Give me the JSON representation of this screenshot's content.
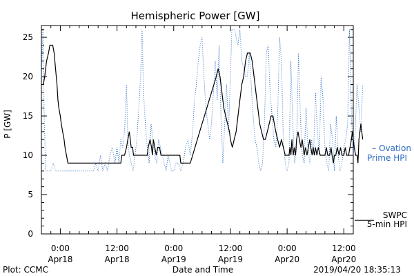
{
  "chart_data": {
    "type": "line",
    "title": "Hemispheric Power [GW]",
    "xlabel": "Date and Time",
    "ylabel": "P [GW]",
    "ylim": [
      0,
      26.5
    ],
    "xlim": [
      -4,
      62
    ],
    "x_unit": "hours since 2019-04-18 00:00",
    "y_ticks": [
      0,
      5,
      10,
      15,
      20,
      25
    ],
    "x_tick_labels": [
      {
        "x": 0,
        "time": "0:00",
        "date": "Apr18"
      },
      {
        "x": 12,
        "time": "12:00",
        "date": "Apr18"
      },
      {
        "x": 24,
        "time": "0:00",
        "date": "Apr19"
      },
      {
        "x": 36,
        "time": "12:00",
        "date": "Apr19"
      },
      {
        "x": 48,
        "time": "0:00",
        "date": "Apr20"
      },
      {
        "x": 60,
        "time": "12:00",
        "date": "Apr20"
      }
    ],
    "grid": false,
    "series": [
      {
        "name": "SWPC 5-min HPI",
        "style": "solid",
        "color": "#000000",
        "legend_lines": [
          "SWPC",
          "5-min HPI"
        ],
        "legend_y": 2,
        "points": [
          [
            -4,
            19
          ],
          [
            -3.6,
            19
          ],
          [
            -3.3,
            20
          ],
          [
            -2.9,
            22
          ],
          [
            -2.5,
            23
          ],
          [
            -2.2,
            24
          ],
          [
            -1.6,
            24
          ],
          [
            -1.3,
            23
          ],
          [
            -1,
            21
          ],
          [
            -0.7,
            19
          ],
          [
            -0.5,
            17
          ],
          [
            -0.3,
            16
          ],
          [
            0,
            15
          ],
          [
            0.2,
            14
          ],
          [
            0.5,
            13
          ],
          [
            0.8,
            12
          ],
          [
            1,
            11
          ],
          [
            1.3,
            10
          ],
          [
            1.6,
            9
          ],
          [
            6,
            9
          ],
          [
            8,
            9
          ],
          [
            10,
            9
          ],
          [
            12,
            9
          ],
          [
            12.8,
            9
          ],
          [
            13,
            10
          ],
          [
            13.6,
            10
          ],
          [
            14,
            11
          ],
          [
            14.3,
            12
          ],
          [
            14.6,
            13
          ],
          [
            14.8,
            12
          ],
          [
            15,
            11
          ],
          [
            15.3,
            11
          ],
          [
            15.5,
            10
          ],
          [
            16,
            10
          ],
          [
            17,
            10
          ],
          [
            18.4,
            10
          ],
          [
            18.6,
            11
          ],
          [
            19,
            12
          ],
          [
            19.3,
            11
          ],
          [
            19.5,
            10
          ],
          [
            19.7,
            12
          ],
          [
            20,
            11
          ],
          [
            20.3,
            10
          ],
          [
            20.6,
            11
          ],
          [
            21,
            11
          ],
          [
            21.3,
            10
          ],
          [
            21.6,
            10
          ],
          [
            22,
            10
          ],
          [
            22.5,
            10
          ],
          [
            23.3,
            10
          ],
          [
            24,
            10
          ],
          [
            25.3,
            10
          ],
          [
            25.5,
            9
          ],
          [
            26,
            9
          ],
          [
            27.5,
            9
          ],
          [
            28,
            10
          ],
          [
            28.5,
            11
          ],
          [
            29,
            12
          ],
          [
            29.5,
            13
          ],
          [
            30,
            14
          ],
          [
            30.5,
            15
          ],
          [
            31,
            16
          ],
          [
            31.5,
            17
          ],
          [
            32,
            18
          ],
          [
            32.5,
            19
          ],
          [
            33,
            20
          ],
          [
            33.4,
            21
          ],
          [
            33.8,
            20
          ],
          [
            34.2,
            18
          ],
          [
            34.6,
            16
          ],
          [
            35,
            15
          ],
          [
            35.4,
            14
          ],
          [
            35.8,
            13
          ],
          [
            36,
            12
          ],
          [
            36.4,
            11
          ],
          [
            36.8,
            12
          ],
          [
            37.2,
            13
          ],
          [
            37.6,
            15
          ],
          [
            38,
            17
          ],
          [
            38.4,
            19
          ],
          [
            38.8,
            20
          ],
          [
            39.2,
            22
          ],
          [
            39.6,
            23
          ],
          [
            40.2,
            23
          ],
          [
            40.6,
            22
          ],
          [
            41,
            20
          ],
          [
            41.4,
            18
          ],
          [
            41.8,
            16
          ],
          [
            42.2,
            14
          ],
          [
            42.6,
            13
          ],
          [
            43,
            12
          ],
          [
            43.4,
            12
          ],
          [
            43.8,
            13
          ],
          [
            44.2,
            14
          ],
          [
            44.6,
            15
          ],
          [
            45,
            15
          ],
          [
            45.3,
            14
          ],
          [
            45.6,
            13
          ],
          [
            46,
            12
          ],
          [
            46.4,
            11
          ],
          [
            46.8,
            12
          ],
          [
            47.2,
            11
          ],
          [
            47.6,
            10
          ],
          [
            48,
            10
          ],
          [
            48.4,
            10
          ],
          [
            48.6,
            11
          ],
          [
            48.8,
            10
          ],
          [
            49,
            12
          ],
          [
            49.3,
            10
          ],
          [
            49.5,
            11
          ],
          [
            49.8,
            10
          ],
          [
            50,
            12
          ],
          [
            50.3,
            13
          ],
          [
            50.6,
            12
          ],
          [
            50.9,
            11
          ],
          [
            51.2,
            12
          ],
          [
            51.4,
            11
          ],
          [
            51.6,
            10
          ],
          [
            51.9,
            11
          ],
          [
            52.2,
            10
          ],
          [
            52.5,
            11
          ],
          [
            52.8,
            12
          ],
          [
            53,
            11
          ],
          [
            53.3,
            10
          ],
          [
            53.5,
            11
          ],
          [
            53.8,
            10
          ],
          [
            54,
            11
          ],
          [
            54.3,
            10
          ],
          [
            54.6,
            11
          ],
          [
            55,
            10
          ],
          [
            55.5,
            10
          ],
          [
            56,
            10
          ],
          [
            56.3,
            11
          ],
          [
            56.6,
            10
          ],
          [
            57,
            10
          ],
          [
            57.3,
            11
          ],
          [
            57.5,
            10
          ],
          [
            57.8,
            9
          ],
          [
            58,
            10
          ],
          [
            58.3,
            10
          ],
          [
            58.6,
            11
          ],
          [
            59,
            10
          ],
          [
            59.3,
            11
          ],
          [
            59.6,
            10
          ],
          [
            60,
            10
          ],
          [
            60.3,
            11
          ],
          [
            60.6,
            10
          ],
          [
            61,
            10
          ],
          [
            61.3,
            11
          ],
          [
            61.6,
            12
          ],
          [
            61.8,
            13
          ],
          [
            62,
            12
          ],
          [
            62.2,
            11
          ],
          [
            62.5,
            10
          ],
          [
            62.8,
            10
          ],
          [
            63,
            9
          ],
          [
            63.2,
            12
          ],
          [
            63.4,
            13
          ],
          [
            63.6,
            14
          ],
          [
            63.8,
            13
          ],
          [
            64,
            12
          ]
        ]
      },
      {
        "name": "Ovation Prime HPI",
        "style": "dotted",
        "color": "#2a6cc4",
        "legend_lines": [
          "– Ovation",
          "Prime HPI"
        ],
        "legend_y": 10,
        "points": [
          [
            -4,
            20
          ],
          [
            -3.7,
            26
          ],
          [
            -3.4,
            15
          ],
          [
            -3.1,
            8
          ],
          [
            -2.8,
            8
          ],
          [
            -2.5,
            8
          ],
          [
            -2,
            8
          ],
          [
            -1.5,
            9
          ],
          [
            -1,
            8
          ],
          [
            0,
            8
          ],
          [
            2,
            8
          ],
          [
            4,
            8
          ],
          [
            6,
            8
          ],
          [
            7,
            8
          ],
          [
            7.5,
            9
          ],
          [
            8,
            8
          ],
          [
            8.5,
            10
          ],
          [
            9,
            8
          ],
          [
            9.5,
            9
          ],
          [
            10,
            8
          ],
          [
            10.5,
            10
          ],
          [
            11,
            11
          ],
          [
            11.3,
            10
          ],
          [
            11.6,
            9
          ],
          [
            12,
            11
          ],
          [
            12.4,
            9
          ],
          [
            12.8,
            12
          ],
          [
            13.2,
            11
          ],
          [
            13.6,
            13
          ],
          [
            14,
            19
          ],
          [
            14.3,
            12
          ],
          [
            14.6,
            10
          ],
          [
            15,
            9
          ],
          [
            15.4,
            8
          ],
          [
            15.8,
            10
          ],
          [
            16.2,
            12
          ],
          [
            16.6,
            16
          ],
          [
            17,
            20
          ],
          [
            17.3,
            26
          ],
          [
            17.6,
            18
          ],
          [
            18,
            14
          ],
          [
            18.4,
            11
          ],
          [
            18.8,
            9
          ],
          [
            19.2,
            14
          ],
          [
            19.6,
            12
          ],
          [
            20,
            10
          ],
          [
            20.4,
            9
          ],
          [
            20.8,
            12
          ],
          [
            21.2,
            11
          ],
          [
            21.6,
            10
          ],
          [
            22,
            9
          ],
          [
            22.4,
            8
          ],
          [
            22.8,
            10
          ],
          [
            23.2,
            9
          ],
          [
            23.6,
            8
          ],
          [
            24,
            8
          ],
          [
            24.5,
            9
          ],
          [
            25,
            9
          ],
          [
            25.5,
            8
          ],
          [
            26,
            9
          ],
          [
            26.5,
            11
          ],
          [
            27,
            12
          ],
          [
            27.5,
            10
          ],
          [
            28,
            13
          ],
          [
            28.4,
            17
          ],
          [
            28.8,
            19
          ],
          [
            29.2,
            22
          ],
          [
            29.6,
            24
          ],
          [
            30,
            25
          ],
          [
            30.4,
            20
          ],
          [
            30.8,
            16
          ],
          [
            31.2,
            14
          ],
          [
            31.6,
            12
          ],
          [
            32,
            14
          ],
          [
            32.4,
            18
          ],
          [
            32.8,
            22
          ],
          [
            33.2,
            17
          ],
          [
            33.6,
            24
          ],
          [
            34,
            15
          ],
          [
            34.4,
            9
          ],
          [
            34.8,
            14
          ],
          [
            35.2,
            19
          ],
          [
            35.6,
            13
          ],
          [
            36,
            20
          ],
          [
            36.3,
            26
          ],
          [
            36.6,
            26
          ],
          [
            36.9,
            26
          ],
          [
            37.2,
            25
          ],
          [
            37.6,
            24
          ],
          [
            38,
            26
          ],
          [
            38.4,
            22
          ],
          [
            38.8,
            21
          ],
          [
            39.2,
            20
          ],
          [
            39.6,
            20
          ],
          [
            40,
            23
          ],
          [
            40.4,
            19
          ],
          [
            40.8,
            15
          ],
          [
            41.2,
            12
          ],
          [
            41.6,
            11
          ],
          [
            42,
            9
          ],
          [
            42.4,
            8
          ],
          [
            42.8,
            9
          ],
          [
            43.2,
            14
          ],
          [
            43.6,
            23
          ],
          [
            44,
            24
          ],
          [
            44.4,
            18
          ],
          [
            44.8,
            15
          ],
          [
            45.2,
            12
          ],
          [
            45.6,
            11
          ],
          [
            46,
            15
          ],
          [
            46.4,
            25
          ],
          [
            46.8,
            22
          ],
          [
            47.2,
            12
          ],
          [
            47.6,
            9
          ],
          [
            48,
            8
          ],
          [
            48.4,
            9
          ],
          [
            48.8,
            22
          ],
          [
            49.2,
            14
          ],
          [
            49.6,
            9
          ],
          [
            50,
            11
          ],
          [
            50.4,
            23
          ],
          [
            50.8,
            15
          ],
          [
            51.2,
            10
          ],
          [
            51.6,
            9
          ],
          [
            52,
            16
          ],
          [
            52.4,
            11
          ],
          [
            52.8,
            9
          ],
          [
            53.2,
            12
          ],
          [
            53.6,
            10
          ],
          [
            54,
            18
          ],
          [
            54.4,
            13
          ],
          [
            54.8,
            10
          ],
          [
            55.2,
            20
          ],
          [
            55.6,
            17
          ],
          [
            56,
            11
          ],
          [
            56.4,
            9
          ],
          [
            56.8,
            8
          ],
          [
            57.2,
            14
          ],
          [
            57.6,
            12
          ],
          [
            58,
            8
          ],
          [
            58.4,
            15
          ],
          [
            58.8,
            10
          ],
          [
            59.2,
            8
          ],
          [
            59.6,
            9
          ],
          [
            60,
            11
          ],
          [
            60.4,
            12
          ],
          [
            60.8,
            14
          ],
          [
            61.2,
            26
          ],
          [
            61.6,
            15
          ],
          [
            62,
            10
          ],
          [
            62.4,
            13
          ],
          [
            62.8,
            19
          ],
          [
            63.2,
            16
          ],
          [
            63.6,
            13
          ],
          [
            64,
            19
          ]
        ]
      }
    ]
  },
  "footer": {
    "plot_credit": "Plot: CCMC",
    "timestamp": "2019/04/20 18:35:13"
  }
}
